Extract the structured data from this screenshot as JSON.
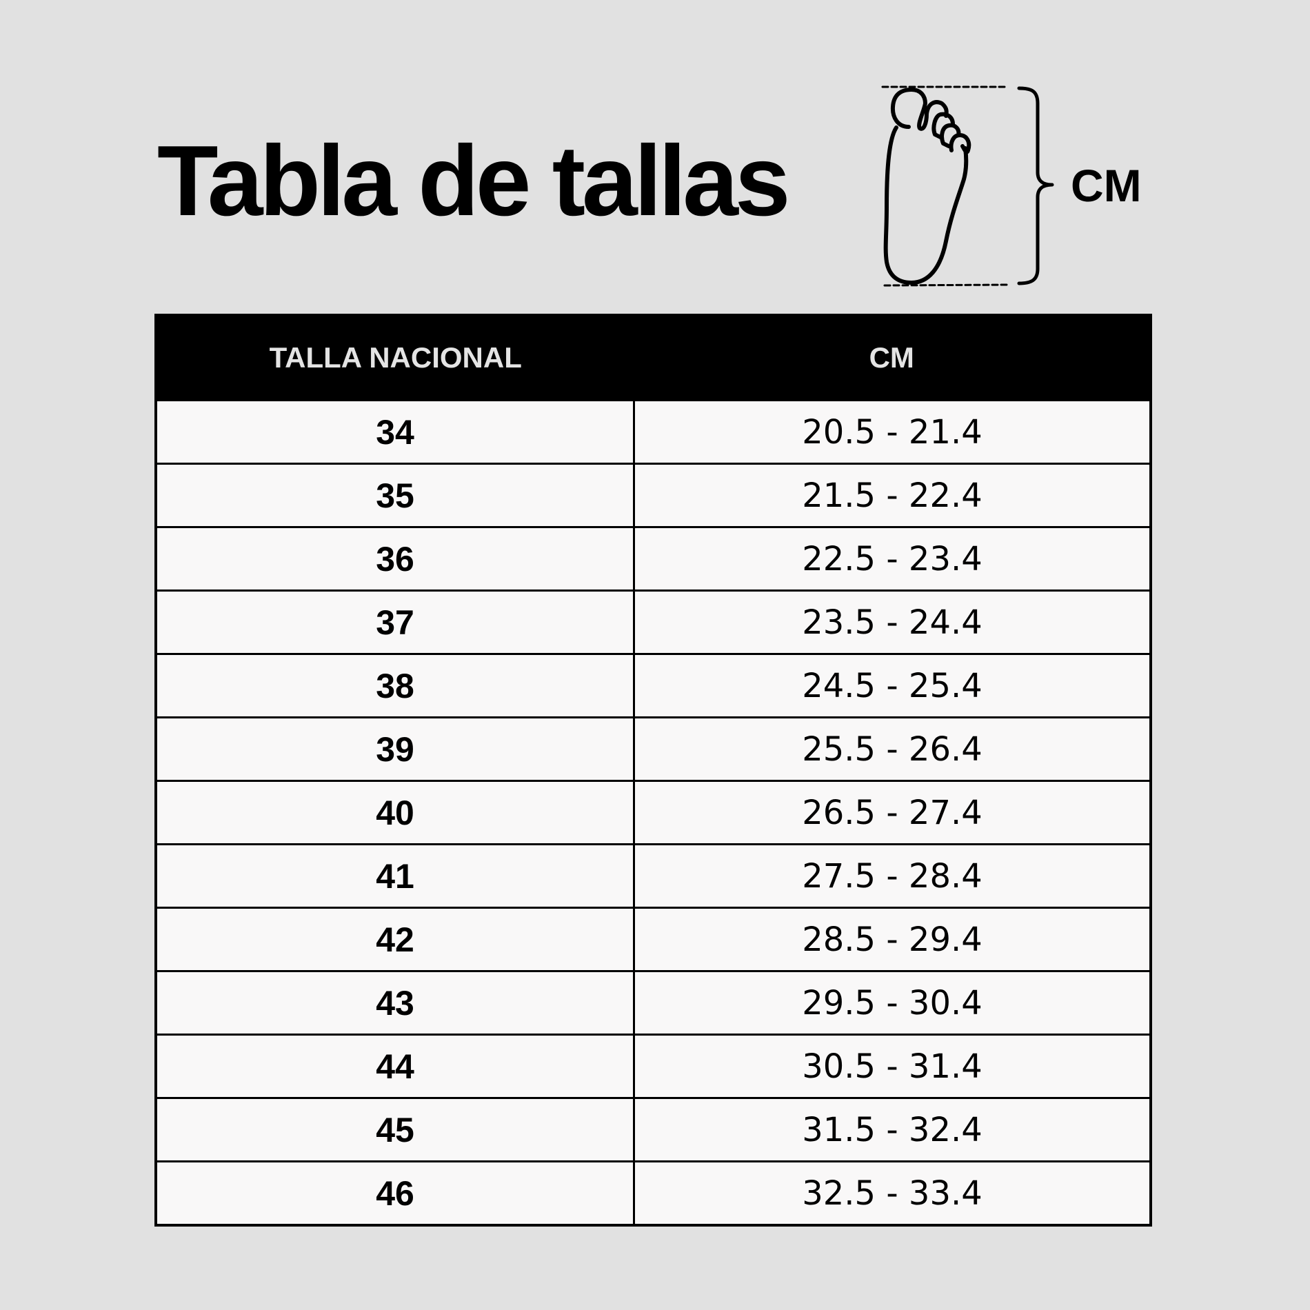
{
  "title": "Tabla de tallas",
  "illustration": {
    "icon": "foot-length-icon",
    "unit_label": "CM"
  },
  "table": {
    "headers": [
      "TALLA NACIONAL",
      "CM"
    ],
    "rows": [
      {
        "size": "34",
        "cm": "20.5 - 21.4"
      },
      {
        "size": "35",
        "cm": "21.5 - 22.4"
      },
      {
        "size": "36",
        "cm": "22.5 - 23.4"
      },
      {
        "size": "37",
        "cm": "23.5 - 24.4"
      },
      {
        "size": "38",
        "cm": "24.5 - 25.4"
      },
      {
        "size": "39",
        "cm": "25.5 - 26.4"
      },
      {
        "size": "40",
        "cm": "26.5 - 27.4"
      },
      {
        "size": "41",
        "cm": "27.5 - 28.4"
      },
      {
        "size": "42",
        "cm": "28.5 - 29.4"
      },
      {
        "size": "43",
        "cm": "29.5 - 30.4"
      },
      {
        "size": "44",
        "cm": "30.5 - 31.4"
      },
      {
        "size": "45",
        "cm": "31.5 - 32.4"
      },
      {
        "size": "46",
        "cm": "32.5 - 33.4"
      }
    ]
  },
  "colors": {
    "background": "#e1e1e1",
    "header_bg": "#000000",
    "header_text": "#e4e4e4",
    "cell_bg": "#f9f8f8"
  }
}
